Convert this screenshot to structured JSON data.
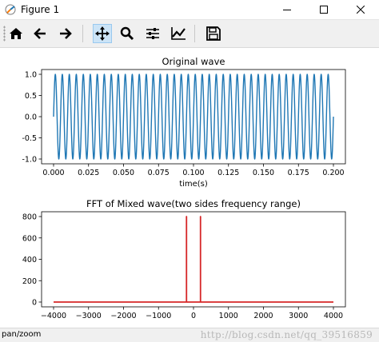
{
  "window": {
    "title": "Figure 1"
  },
  "toolbar": {
    "buttons": [
      {
        "icon": "home-icon"
      },
      {
        "icon": "back-arrow-icon"
      },
      {
        "icon": "forward-arrow-icon"
      },
      {
        "icon": "pan-icon",
        "active": true
      },
      {
        "icon": "zoom-icon"
      },
      {
        "icon": "configure-subplots-icon"
      },
      {
        "icon": "edit-axis-icon"
      },
      {
        "icon": "save-icon"
      }
    ]
  },
  "status": {
    "text": "pan/zoom"
  },
  "watermark": "http://blog.csdn.net/qq_39516859",
  "chart_data": [
    {
      "type": "line",
      "title": "Original wave",
      "xlabel": "time(s)",
      "ylabel": "",
      "xlim": [
        0.0,
        0.2
      ],
      "ylim": [
        -1.0,
        1.0
      ],
      "x_ticks": [
        "0.000",
        "0.025",
        "0.050",
        "0.075",
        "0.100",
        "0.125",
        "0.150",
        "0.175",
        "0.200"
      ],
      "y_ticks": [
        "1.0",
        "0.5",
        "0.0",
        "-0.5",
        "-1.0"
      ],
      "series": [
        {
          "signal": "sine",
          "frequency_hz": 200,
          "amplitude": 1.0,
          "color": "#1f77b4"
        }
      ]
    },
    {
      "type": "line",
      "title": "FFT of Mixed wave(two sides frequency range)",
      "xlabel": "",
      "ylabel": "",
      "xlim": [
        -4000,
        4000
      ],
      "ylim": [
        0,
        800
      ],
      "x_ticks": [
        "−4000",
        "−3000",
        "−2000",
        "−1000",
        "0",
        "1000",
        "2000",
        "3000",
        "4000"
      ],
      "y_ticks": [
        "800",
        "600",
        "400",
        "200",
        "0"
      ],
      "series": [
        {
          "points": [
            [
              -4000,
              0
            ],
            [
              -200,
              0
            ],
            [
              -200,
              800
            ],
            [
              -200,
              0
            ],
            [
              200,
              0
            ],
            [
              200,
              800
            ],
            [
              200,
              0
            ],
            [
              4000,
              0
            ]
          ],
          "color": "#d62728"
        }
      ]
    }
  ]
}
